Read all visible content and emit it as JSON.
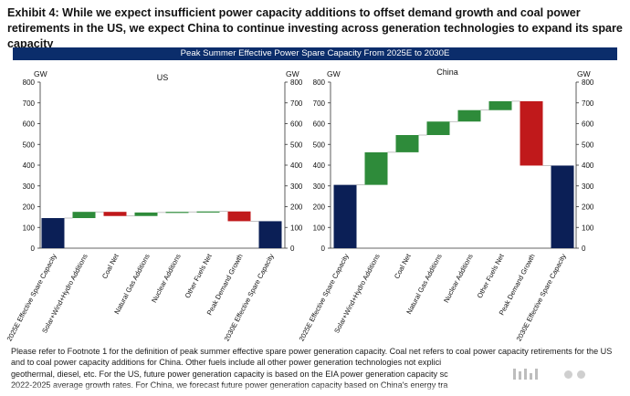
{
  "title_text": "Exhibit 4: While we expect insufficient power capacity additions to offset demand growth and coal power retirements in the US, we expect China to continue investing across generation technologies to expand its spare capacity",
  "banner_text": "Peak Summer Effective Power Spare Capacity From 2025E to 2030E",
  "footnote_lines": [
    "Please refer to Footnote 1 for the definition of peak summer effective spare power generation capacity. Coal net refers to coal power capacity retirements for the US",
    "and to coal power capacity additions for China. Other fuels include all other power generation technologies not explici",
    "geothermal, diesel, etc. For the US, future power generation capacity is based on the EIA power generation capacity sc",
    "2022-2025 average growth rates. For China, we forecast future power generation capacity based on China's energy tra"
  ],
  "colors": {
    "total": "#0b1f56",
    "increase": "#2e8b3a",
    "decrease": "#c0191b",
    "banner": "#0b2d6b"
  },
  "chart_data": [
    {
      "type": "bar",
      "subtype": "waterfall",
      "title": "US",
      "ylabel": "GW",
      "y2label": "GW",
      "ylim": [
        0,
        800
      ],
      "yticks": [
        "0",
        "100",
        "200",
        "300",
        "400",
        "500",
        "600",
        "700",
        "800"
      ],
      "categories": [
        "2025E Effective Spare Capacity",
        "Solar+Wind+Hydro Additions",
        "Coal Net",
        "Natural Gas Additions",
        "Nuclear Additions",
        "Other Fuels Net",
        "Peak Demand Growth",
        "2030E Effective Spare Capacity"
      ],
      "bars": [
        {
          "kind": "total",
          "start": 0,
          "end": 145
        },
        {
          "kind": "increase",
          "start": 145,
          "end": 175
        },
        {
          "kind": "decrease",
          "start": 175,
          "end": 155
        },
        {
          "kind": "increase",
          "start": 155,
          "end": 172
        },
        {
          "kind": "increase",
          "start": 172,
          "end": 175
        },
        {
          "kind": "increase",
          "start": 175,
          "end": 177
        },
        {
          "kind": "decrease",
          "start": 177,
          "end": 130
        },
        {
          "kind": "total",
          "start": 0,
          "end": 130
        }
      ]
    },
    {
      "type": "bar",
      "subtype": "waterfall",
      "title": "China",
      "ylabel": "GW",
      "y2label": "GW",
      "ylim": [
        0,
        800
      ],
      "yticks": [
        "0",
        "100",
        "200",
        "300",
        "400",
        "500",
        "600",
        "700",
        "800"
      ],
      "categories": [
        "2025E Effective Spare Capacity",
        "Solar+Wind+Hydro Additions",
        "Coal Net",
        "Natural Gas Additions",
        "Nuclear Additions",
        "Other Fuels Net",
        "Peak Demand Growth",
        "2030E Effective Spare Capacity"
      ],
      "bars": [
        {
          "kind": "total",
          "start": 0,
          "end": 305
        },
        {
          "kind": "increase",
          "start": 305,
          "end": 462
        },
        {
          "kind": "increase",
          "start": 462,
          "end": 545
        },
        {
          "kind": "increase",
          "start": 545,
          "end": 610
        },
        {
          "kind": "increase",
          "start": 610,
          "end": 665
        },
        {
          "kind": "increase",
          "start": 665,
          "end": 708
        },
        {
          "kind": "decrease",
          "start": 708,
          "end": 398
        },
        {
          "kind": "total",
          "start": 0,
          "end": 398
        }
      ]
    }
  ]
}
